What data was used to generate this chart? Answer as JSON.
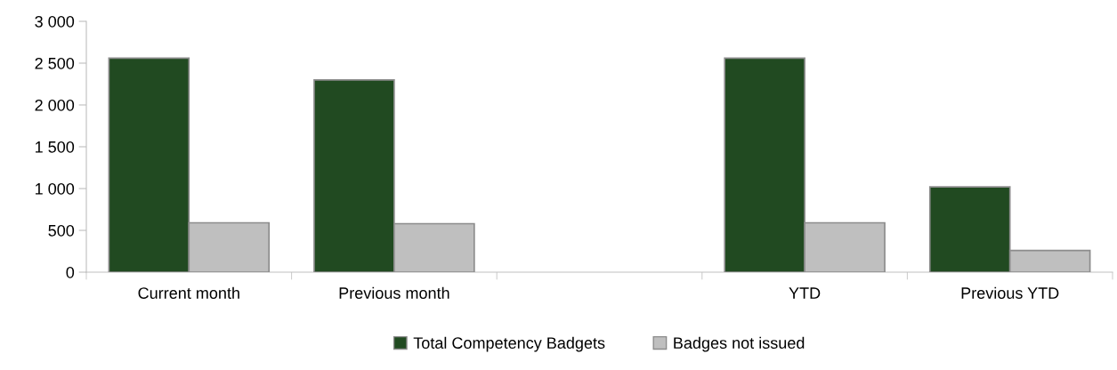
{
  "chart_data": {
    "type": "bar",
    "categories": [
      "Current month",
      "Previous month",
      null,
      "YTD",
      "Previous YTD"
    ],
    "series": [
      {
        "name": "Total Competency Badgets",
        "color": "#214a21",
        "values": [
          2560,
          2300,
          null,
          2560,
          1020
        ]
      },
      {
        "name": "Badges not issued",
        "color": "#bfbfbf",
        "values": [
          590,
          580,
          null,
          590,
          260
        ]
      }
    ],
    "ylim": [
      0,
      3000
    ],
    "yticks": [
      0,
      {
        "value": 500,
        "label": "500"
      },
      {
        "value": 1000,
        "label": "1 000"
      },
      {
        "value": 1500,
        "label": "1 500"
      },
      {
        "value": 2000,
        "label": "2 000"
      },
      {
        "value": 2500,
        "label": "2 500"
      },
      {
        "value": 3000,
        "label": "3 000"
      }
    ],
    "grid": false,
    "legend": "bottom"
  }
}
